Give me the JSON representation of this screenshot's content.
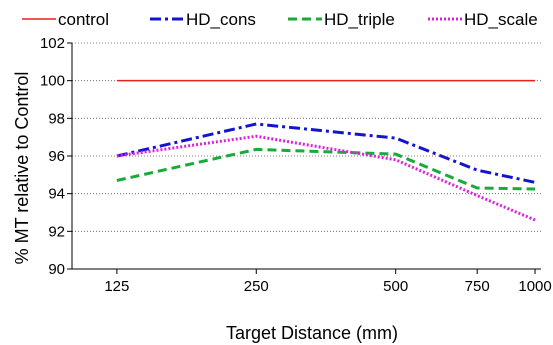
{
  "chart_data": {
    "type": "line",
    "xlabel": "Target Distance (mm)",
    "ylabel": "% MT relative to Control",
    "x": [
      125,
      250,
      500,
      750,
      1000
    ],
    "x_tick_labels": [
      "125",
      "250",
      "500",
      "750",
      "1000"
    ],
    "x_scale": "log",
    "xlim": [
      100,
      1030
    ],
    "ylim": [
      90,
      102
    ],
    "y_ticks": [
      90,
      92,
      94,
      96,
      98,
      100,
      102
    ],
    "y_tick_labels": [
      "90",
      "92",
      "94",
      "96",
      "98",
      "100",
      "102"
    ],
    "grid": "horizontal dotted",
    "legend_position": "top",
    "series": [
      {
        "name": "control",
        "color": "#e8201a",
        "dash": "solid",
        "values": [
          100,
          100,
          100,
          100,
          100
        ]
      },
      {
        "name": "HD_cons",
        "color": "#1414d0",
        "dash": "dashdot",
        "values": [
          96.0,
          97.7,
          96.95,
          95.25,
          94.6
        ]
      },
      {
        "name": "HD_triple",
        "color": "#1aaa3a",
        "dash": "dashed",
        "values": [
          94.7,
          96.35,
          96.1,
          94.3,
          94.25
        ]
      },
      {
        "name": "HD_scale",
        "color": "#e020e0",
        "dash": "dotted",
        "values": [
          96.0,
          97.05,
          95.8,
          93.9,
          92.6
        ]
      }
    ]
  }
}
